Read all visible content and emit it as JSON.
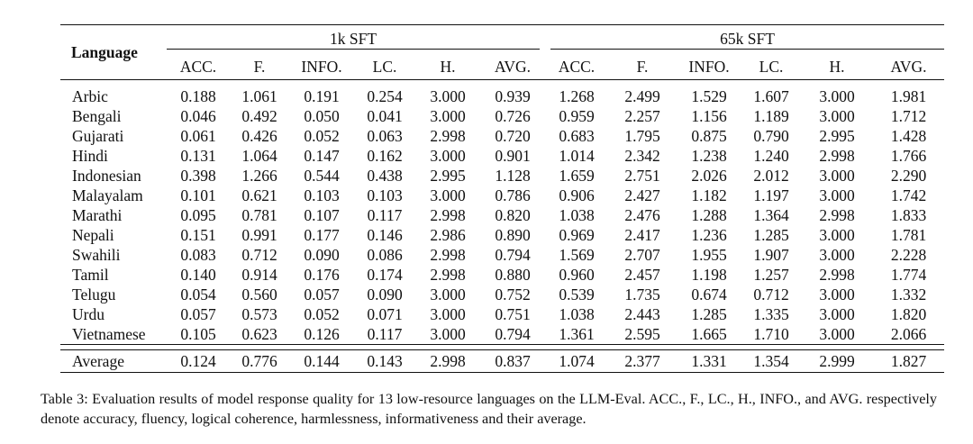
{
  "table": {
    "language_header": "Language",
    "groups": [
      "1k SFT",
      "65k SFT"
    ],
    "metrics": [
      "ACC.",
      "F.",
      "INFO.",
      "LC.",
      "H.",
      "AVG.",
      "ACC.",
      "F.",
      "INFO.",
      "LC.",
      "H.",
      "AVG."
    ],
    "rows": [
      {
        "lang": "Arbic",
        "values": [
          "0.188",
          "1.061",
          "0.191",
          "0.254",
          "3.000",
          "0.939",
          "1.268",
          "2.499",
          "1.529",
          "1.607",
          "3.000",
          "1.981"
        ]
      },
      {
        "lang": "Bengali",
        "values": [
          "0.046",
          "0.492",
          "0.050",
          "0.041",
          "3.000",
          "0.726",
          "0.959",
          "2.257",
          "1.156",
          "1.189",
          "3.000",
          "1.712"
        ]
      },
      {
        "lang": "Gujarati",
        "values": [
          "0.061",
          "0.426",
          "0.052",
          "0.063",
          "2.998",
          "0.720",
          "0.683",
          "1.795",
          "0.875",
          "0.790",
          "2.995",
          "1.428"
        ]
      },
      {
        "lang": "Hindi",
        "values": [
          "0.131",
          "1.064",
          "0.147",
          "0.162",
          "3.000",
          "0.901",
          "1.014",
          "2.342",
          "1.238",
          "1.240",
          "2.998",
          "1.766"
        ]
      },
      {
        "lang": "Indonesian",
        "values": [
          "0.398",
          "1.266",
          "0.544",
          "0.438",
          "2.995",
          "1.128",
          "1.659",
          "2.751",
          "2.026",
          "2.012",
          "3.000",
          "2.290"
        ]
      },
      {
        "lang": "Malayalam",
        "values": [
          "0.101",
          "0.621",
          "0.103",
          "0.103",
          "3.000",
          "0.786",
          "0.906",
          "2.427",
          "1.182",
          "1.197",
          "3.000",
          "1.742"
        ]
      },
      {
        "lang": "Marathi",
        "values": [
          "0.095",
          "0.781",
          "0.107",
          "0.117",
          "2.998",
          "0.820",
          "1.038",
          "2.476",
          "1.288",
          "1.364",
          "2.998",
          "1.833"
        ]
      },
      {
        "lang": "Nepali",
        "values": [
          "0.151",
          "0.991",
          "0.177",
          "0.146",
          "2.986",
          "0.890",
          "0.969",
          "2.417",
          "1.236",
          "1.285",
          "3.000",
          "1.781"
        ]
      },
      {
        "lang": "Swahili",
        "values": [
          "0.083",
          "0.712",
          "0.090",
          "0.086",
          "2.998",
          "0.794",
          "1.569",
          "2.707",
          "1.955",
          "1.907",
          "3.000",
          "2.228"
        ]
      },
      {
        "lang": "Tamil",
        "values": [
          "0.140",
          "0.914",
          "0.176",
          "0.174",
          "2.998",
          "0.880",
          "0.960",
          "2.457",
          "1.198",
          "1.257",
          "2.998",
          "1.774"
        ]
      },
      {
        "lang": "Telugu",
        "values": [
          "0.054",
          "0.560",
          "0.057",
          "0.090",
          "3.000",
          "0.752",
          "0.539",
          "1.735",
          "0.674",
          "0.712",
          "3.000",
          "1.332"
        ]
      },
      {
        "lang": "Urdu",
        "values": [
          "0.057",
          "0.573",
          "0.052",
          "0.071",
          "3.000",
          "0.751",
          "1.038",
          "2.443",
          "1.285",
          "1.335",
          "3.000",
          "1.820"
        ]
      },
      {
        "lang": "Vietnamese",
        "values": [
          "0.105",
          "0.623",
          "0.126",
          "0.117",
          "3.000",
          "0.794",
          "1.361",
          "2.595",
          "1.665",
          "1.710",
          "3.000",
          "2.066"
        ]
      }
    ],
    "average": {
      "lang": "Average",
      "values": [
        "0.124",
        "0.776",
        "0.144",
        "0.143",
        "2.998",
        "0.837",
        "1.074",
        "2.377",
        "1.331",
        "1.354",
        "2.999",
        "1.827"
      ]
    }
  },
  "caption": "Table 3: Evaluation results of model response quality for 13 low-resource languages on the LLM-Eval. ACC., F., LC., H., INFO., and AVG. respectively denote accuracy, fluency, logical coherence, harmlessness, informativeness and their average."
}
